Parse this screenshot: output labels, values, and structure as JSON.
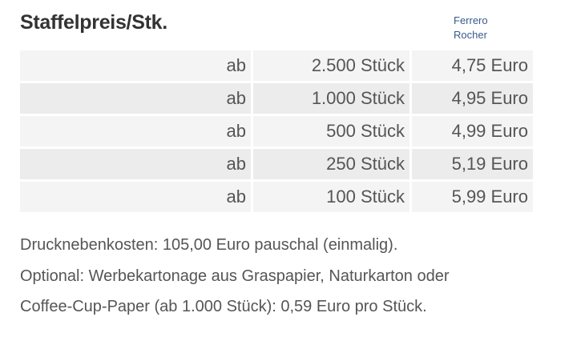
{
  "title": "Staffelpreis/Stk.",
  "brand": {
    "line1": "Ferrero",
    "line2": "Rocher",
    "color": "#3a5a8c"
  },
  "table": {
    "rows": [
      {
        "prefix": "ab",
        "quantity": "2.500 Stück",
        "price": "4,75 Euro"
      },
      {
        "prefix": "ab",
        "quantity": "1.000 Stück",
        "price": "4,95 Euro"
      },
      {
        "prefix": "ab",
        "quantity": "500 Stück",
        "price": "4,99 Euro"
      },
      {
        "prefix": "ab",
        "quantity": "250 Stück",
        "price": "5,19 Euro"
      },
      {
        "prefix": "ab",
        "quantity": "100 Stück",
        "price": "5,99 Euro"
      }
    ]
  },
  "notes": [
    "Drucknebenkosten: 105,00 Euro pauschal (einmalig).",
    "Optional: Werbekartonage aus Graspapier, Naturkarton oder",
    "Coffee-Cup-Paper (ab 1.000 Stück): 0,59 Euro pro Stück."
  ]
}
